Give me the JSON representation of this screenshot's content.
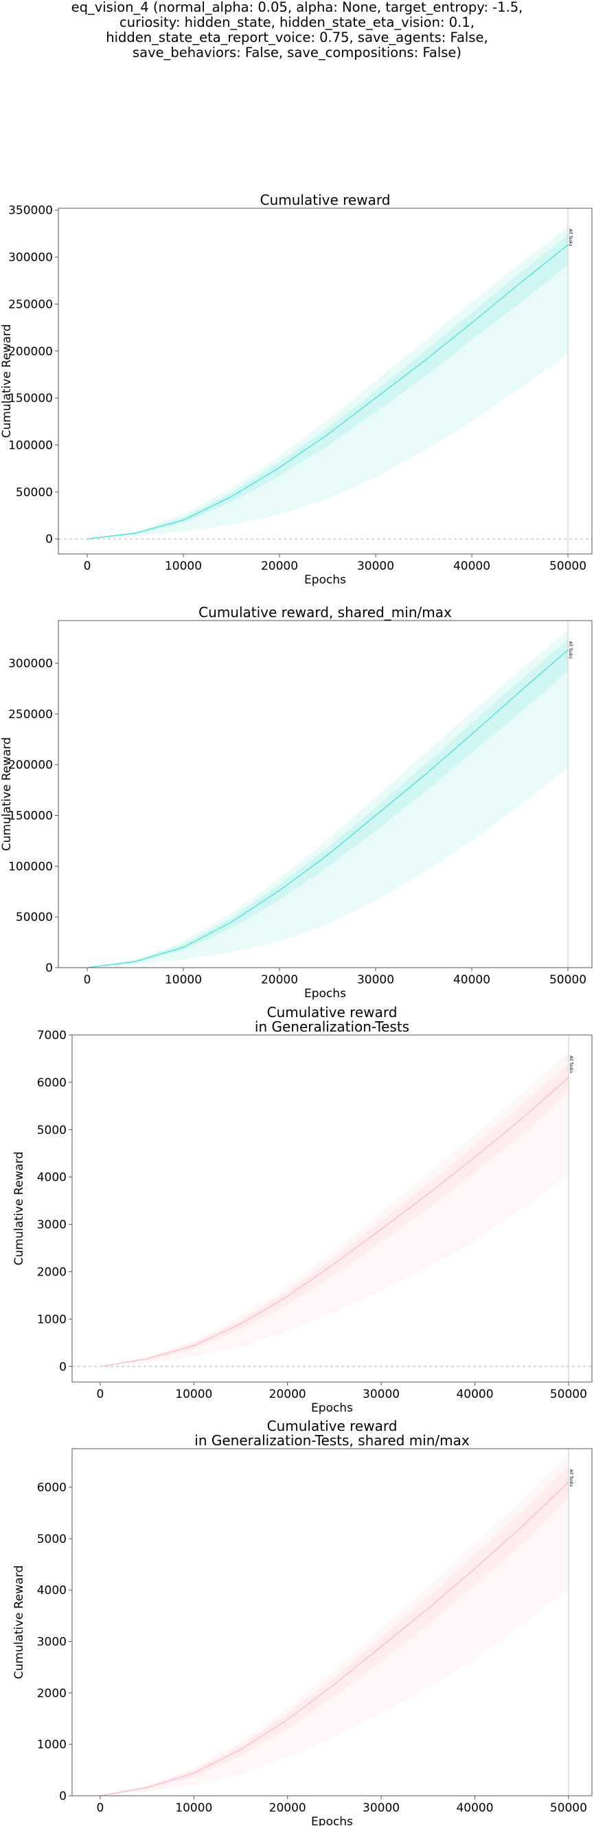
{
  "suptitle_lines": [
    "eq_vision_4 (normal_alpha: 0.05, alpha: None, target_entropy: -1.5,",
    "curiosity: hidden_state, hidden_state_eta_vision: 0.1,",
    "hidden_state_eta_report_voice: 0.75, save_agents: False,",
    "save_behaviors: False, save_compositions: False)"
  ],
  "chart_data": [
    {
      "type": "line",
      "title": "Cumulative reward",
      "xlabel": "Epochs",
      "ylabel": "Cumulative Reward",
      "xlim": [
        -3000,
        52500
      ],
      "ylim": [
        -16000,
        352000
      ],
      "xticks": [
        0,
        10000,
        20000,
        30000,
        40000,
        50000
      ],
      "yticks": [
        0,
        50000,
        100000,
        150000,
        200000,
        250000,
        300000,
        350000
      ],
      "zero_line": true,
      "grid": false,
      "color": "#40e0d0",
      "vline": {
        "x": 50000,
        "label": "All Tasks"
      },
      "x": [
        0,
        5000,
        10000,
        15000,
        20000,
        25000,
        30000,
        35000,
        40000,
        45000,
        50000
      ],
      "series": [
        {
          "values": [
            0,
            6000,
            20000,
            45000,
            76000,
            111000,
            150000,
            189000,
            230000,
            272000,
            313000
          ]
        }
      ],
      "bands": [
        {
          "lower": [
            0,
            3000,
            8000,
            15000,
            26000,
            43000,
            66000,
            94000,
            125000,
            160000,
            197000
          ],
          "upper": [
            0,
            8000,
            26000,
            54000,
            88000,
            126000,
            168000,
            210000,
            252000,
            293000,
            332000
          ]
        },
        {
          "lower": [
            0,
            5000,
            17000,
            39000,
            67000,
            99000,
            135000,
            172000,
            212000,
            251000,
            292000
          ],
          "upper": [
            0,
            7000,
            23000,
            49000,
            82000,
            118000,
            158000,
            199000,
            241000,
            283000,
            323000
          ]
        }
      ]
    },
    {
      "type": "line",
      "title": "Cumulative reward, shared_min/max",
      "xlabel": "Epochs",
      "ylabel": "Cumulative Reward",
      "xlim": [
        -3000,
        52500
      ],
      "ylim": [
        0,
        342000
      ],
      "xticks": [
        0,
        10000,
        20000,
        30000,
        40000,
        50000
      ],
      "yticks": [
        0,
        50000,
        100000,
        150000,
        200000,
        250000,
        300000
      ],
      "zero_line": false,
      "grid": false,
      "color": "#40e0d0",
      "vline": {
        "x": 50000,
        "label": "All Tasks"
      },
      "x": [
        0,
        5000,
        10000,
        15000,
        20000,
        25000,
        30000,
        35000,
        40000,
        45000,
        50000
      ],
      "series": [
        {
          "values": [
            0,
            6000,
            20000,
            45000,
            76000,
            111000,
            150000,
            189000,
            230000,
            272000,
            313000
          ]
        }
      ],
      "bands": [
        {
          "lower": [
            0,
            3000,
            8000,
            15000,
            26000,
            43000,
            66000,
            94000,
            125000,
            160000,
            197000
          ],
          "upper": [
            0,
            8000,
            26000,
            54000,
            88000,
            126000,
            168000,
            210000,
            252000,
            293000,
            332000
          ]
        },
        {
          "lower": [
            0,
            5000,
            17000,
            39000,
            67000,
            99000,
            135000,
            172000,
            212000,
            251000,
            292000
          ],
          "upper": [
            0,
            7000,
            23000,
            49000,
            82000,
            118000,
            158000,
            199000,
            241000,
            283000,
            323000
          ]
        }
      ]
    },
    {
      "type": "line",
      "title": "Cumulative reward\nin Generalization-Tests",
      "xlabel": "Epochs",
      "ylabel": "Cumulative Reward",
      "xlim": [
        -3000,
        52500
      ],
      "ylim": [
        -330,
        7000
      ],
      "xticks": [
        0,
        10000,
        20000,
        30000,
        40000,
        50000
      ],
      "yticks": [
        0,
        1000,
        2000,
        3000,
        4000,
        5000,
        6000,
        7000
      ],
      "zero_line": true,
      "grid": false,
      "color": "#ffb6c1",
      "vline": {
        "x": 50000,
        "label": "All Tasks"
      },
      "x": [
        0,
        5000,
        10000,
        15000,
        20000,
        25000,
        30000,
        35000,
        40000,
        45000,
        50000
      ],
      "series": [
        {
          "values": [
            0,
            160,
            440,
            900,
            1480,
            2170,
            2900,
            3640,
            4420,
            5230,
            6100
          ]
        }
      ],
      "bands": [
        {
          "lower": [
            0,
            80,
            200,
            420,
            750,
            1150,
            1600,
            2100,
            2650,
            3320,
            4050
          ],
          "upper": [
            0,
            200,
            540,
            1060,
            1700,
            2450,
            3250,
            4070,
            4900,
            5760,
            6650
          ]
        },
        {
          "lower": [
            0,
            130,
            370,
            780,
            1300,
            1930,
            2620,
            3340,
            4100,
            4900,
            5800
          ],
          "upper": [
            0,
            180,
            500,
            980,
            1590,
            2300,
            3080,
            3860,
            4680,
            5520,
            6400
          ]
        }
      ]
    },
    {
      "type": "line",
      "title": "Cumulative reward\nin Generalization-Tests, shared min/max",
      "xlabel": "Epochs",
      "ylabel": "Cumulative Reward",
      "xlim": [
        -3000,
        52500
      ],
      "ylim": [
        0,
        6750
      ],
      "xticks": [
        0,
        10000,
        20000,
        30000,
        40000,
        50000
      ],
      "yticks": [
        0,
        1000,
        2000,
        3000,
        4000,
        5000,
        6000
      ],
      "zero_line": false,
      "grid": false,
      "color": "#ffb6c1",
      "vline": {
        "x": 50000,
        "label": "All Tasks"
      },
      "x": [
        0,
        5000,
        10000,
        15000,
        20000,
        25000,
        30000,
        35000,
        40000,
        45000,
        50000
      ],
      "series": [
        {
          "values": [
            0,
            160,
            440,
            900,
            1480,
            2170,
            2900,
            3640,
            4420,
            5230,
            6100
          ]
        }
      ],
      "bands": [
        {
          "lower": [
            0,
            80,
            200,
            420,
            750,
            1150,
            1600,
            2100,
            2650,
            3320,
            4050
          ],
          "upper": [
            0,
            200,
            540,
            1060,
            1700,
            2450,
            3250,
            4070,
            4900,
            5760,
            6650
          ]
        },
        {
          "lower": [
            0,
            130,
            370,
            780,
            1300,
            1930,
            2620,
            3340,
            4100,
            4900,
            5800
          ],
          "upper": [
            0,
            180,
            500,
            980,
            1590,
            2300,
            3080,
            3860,
            4680,
            5520,
            6400
          ]
        }
      ]
    }
  ]
}
